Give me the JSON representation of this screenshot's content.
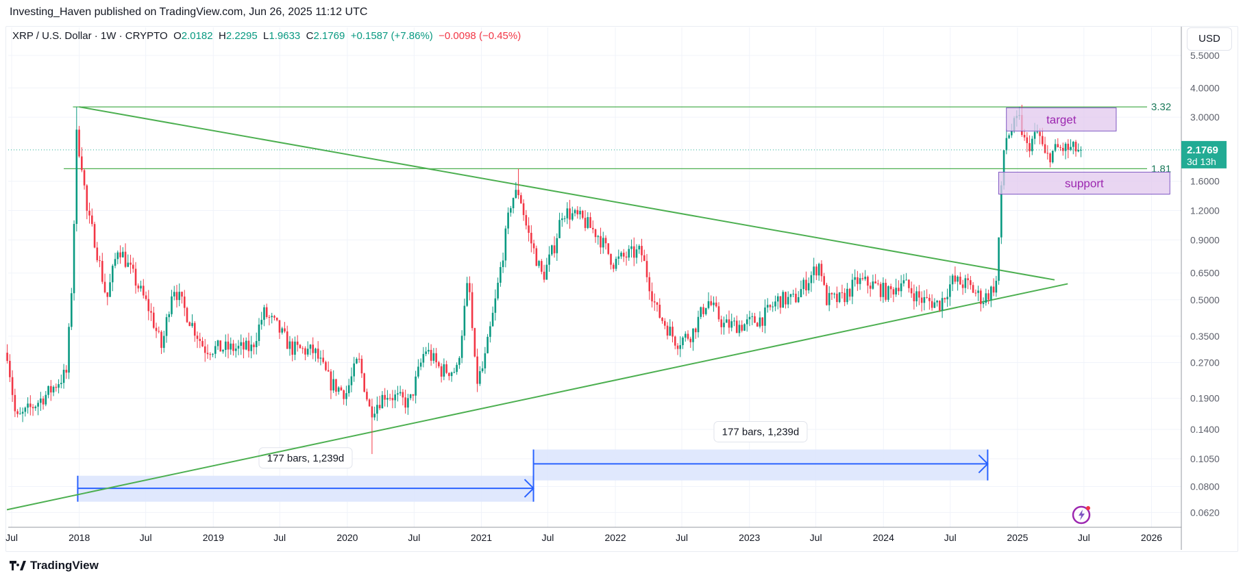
{
  "header": {
    "published": "Investing_Haven published on TradingView.com, Jun 26, 2025 11:12 UTC"
  },
  "legend": {
    "symbol": "XRP / U.S. Dollar · 1W · CRYPTO",
    "o_label": "O",
    "o": "2.0182",
    "h_label": "H",
    "h": "2.2295",
    "l_label": "L",
    "l": "1.9633",
    "c_label": "C",
    "c": "2.1769",
    "change": "+0.1587 (+7.86%)",
    "change2": "−0.0098 (−0.45%)"
  },
  "axis": {
    "currency": "USD",
    "last_price": "2.1769",
    "countdown": "3d 13h"
  },
  "footer": {
    "brand": "TradingView"
  },
  "colors": {
    "up": "#089981",
    "down": "#f23645",
    "trend": "#4caf50",
    "zone_fill": "#e1c8ee",
    "zone_border": "#7e57c2",
    "range_fill": "#dde6fd",
    "range_line": "#2962ff",
    "last_price": "#22ab94"
  },
  "chart_data": {
    "type": "candlestick",
    "timeframe": "1W",
    "scale": "log",
    "ylim": [
      0.0586,
      5.8
    ],
    "xlim": [
      "2017-06-15",
      "2026-06-30"
    ],
    "grid": true,
    "yticks": [
      "5.5000",
      "4.0000",
      "3.0000",
      "1.6000",
      "1.2000",
      "0.9000",
      "0.6500",
      "0.5000",
      "0.3500",
      "0.2700",
      "0.1900",
      "0.1400",
      "0.1050",
      "0.0800",
      "0.0620"
    ],
    "xticks": [
      {
        "label": "Jul",
        "date": "2017-07-01"
      },
      {
        "label": "2018",
        "date": "2018-01-01"
      },
      {
        "label": "Jul",
        "date": "2018-07-01"
      },
      {
        "label": "2019",
        "date": "2019-01-01"
      },
      {
        "label": "Jul",
        "date": "2019-07-01"
      },
      {
        "label": "2020",
        "date": "2020-01-01"
      },
      {
        "label": "Jul",
        "date": "2020-07-01"
      },
      {
        "label": "2021",
        "date": "2021-01-01"
      },
      {
        "label": "Jul",
        "date": "2021-07-01"
      },
      {
        "label": "2022",
        "date": "2022-01-01"
      },
      {
        "label": "Jul",
        "date": "2022-07-01"
      },
      {
        "label": "2023",
        "date": "2023-01-01"
      },
      {
        "label": "Jul",
        "date": "2023-07-01"
      },
      {
        "label": "2024",
        "date": "2024-01-01"
      },
      {
        "label": "Jul",
        "date": "2024-07-01"
      },
      {
        "label": "2025",
        "date": "2025-01-01"
      },
      {
        "label": "Jul",
        "date": "2025-07-01"
      },
      {
        "label": "2026",
        "date": "2026-01-01"
      }
    ],
    "price_path": [
      [
        "2017-06-26",
        0.245
      ],
      [
        "2017-07-13",
        0.153
      ],
      [
        "2017-08-26",
        0.175
      ],
      [
        "2017-10-08",
        0.2
      ],
      [
        "2017-11-28",
        0.245
      ],
      [
        "2017-12-14",
        0.67
      ],
      [
        "2017-12-25",
        2.5
      ],
      [
        "2018-01-08",
        1.9
      ],
      [
        "2018-01-22",
        1.17
      ],
      [
        "2018-02-12",
        0.9
      ],
      [
        "2018-03-17",
        0.5
      ],
      [
        "2018-04-17",
        0.85
      ],
      [
        "2018-05-30",
        0.62
      ],
      [
        "2018-07-12",
        0.45
      ],
      [
        "2018-08-14",
        0.31
      ],
      [
        "2018-09-13",
        0.58
      ],
      [
        "2018-10-16",
        0.45
      ],
      [
        "2018-12-08",
        0.31
      ],
      [
        "2019-02-10",
        0.31
      ],
      [
        "2019-04-16",
        0.31
      ],
      [
        "2019-05-18",
        0.44
      ],
      [
        "2019-06-20",
        0.39
      ],
      [
        "2019-08-01",
        0.31
      ],
      [
        "2019-10-04",
        0.3
      ],
      [
        "2019-11-17",
        0.22
      ],
      [
        "2019-12-29",
        0.2
      ],
      [
        "2020-01-31",
        0.28
      ],
      [
        "2020-03-03",
        0.167
      ],
      [
        "2020-04-15",
        0.2
      ],
      [
        "2020-06-18",
        0.18
      ],
      [
        "2020-07-31",
        0.31
      ],
      [
        "2020-09-12",
        0.25
      ],
      [
        "2020-10-26",
        0.25
      ],
      [
        "2020-11-26",
        0.62
      ],
      [
        "2020-12-17",
        0.22
      ],
      [
        "2021-01-07",
        0.26
      ],
      [
        "2021-02-09",
        0.5
      ],
      [
        "2021-03-24",
        1.35
      ],
      [
        "2021-04-14",
        1.45
      ],
      [
        "2021-05-05",
        1.0
      ],
      [
        "2021-06-17",
        0.62
      ],
      [
        "2021-07-19",
        0.85
      ],
      [
        "2021-08-10",
        1.2
      ],
      [
        "2021-10-01",
        1.1
      ],
      [
        "2021-11-14",
        0.95
      ],
      [
        "2021-12-27",
        0.72
      ],
      [
        "2022-02-08",
        0.78
      ],
      [
        "2022-03-12",
        0.8
      ],
      [
        "2022-04-23",
        0.45
      ],
      [
        "2022-06-17",
        0.33
      ],
      [
        "2022-07-29",
        0.36
      ],
      [
        "2022-09-09",
        0.5
      ],
      [
        "2022-10-23",
        0.39
      ],
      [
        "2022-12-16",
        0.39
      ],
      [
        "2023-02-07",
        0.42
      ],
      [
        "2023-03-20",
        0.5
      ],
      [
        "2023-05-03",
        0.5
      ],
      [
        "2023-07-13",
        0.72
      ],
      [
        "2023-07-27",
        0.5
      ],
      [
        "2023-09-08",
        0.5
      ],
      [
        "2023-10-22",
        0.6
      ],
      [
        "2023-12-03",
        0.58
      ],
      [
        "2024-01-15",
        0.53
      ],
      [
        "2024-02-18",
        0.6
      ],
      [
        "2024-04-12",
        0.5
      ],
      [
        "2024-06-02",
        0.48
      ],
      [
        "2024-07-06",
        0.6
      ],
      [
        "2024-08-17",
        0.58
      ],
      [
        "2024-09-27",
        0.5
      ],
      [
        "2024-10-22",
        0.55
      ],
      [
        "2024-11-05",
        0.6
      ],
      [
        "2024-11-12",
        1.05
      ],
      [
        "2024-11-19",
        1.6
      ],
      [
        "2024-11-26",
        2.4
      ],
      [
        "2025-01-05",
        2.95
      ],
      [
        "2025-01-25",
        2.2
      ],
      [
        "2025-02-27",
        2.6
      ],
      [
        "2025-03-18",
        2.0
      ],
      [
        "2025-04-18",
        2.2
      ],
      [
        "2025-05-11",
        2.2
      ],
      [
        "2025-06-23",
        2.1769
      ]
    ],
    "spike_highs": [
      [
        "2017-12-25",
        3.32
      ],
      [
        "2021-04-14",
        1.81
      ],
      [
        "2025-01-12",
        3.39
      ],
      [
        "2020-03-10",
        0.11
      ]
    ],
    "horizontal_levels": [
      {
        "label": "3.32",
        "price": 3.32,
        "from": "2017-12-15"
      },
      {
        "label": "1.81",
        "price": 1.81,
        "from": "2017-11-20"
      }
    ],
    "trendlines": [
      {
        "from": [
          "2018-01-01",
          3.32
        ],
        "to": [
          "2025-04-12",
          0.608
        ]
      },
      {
        "from": [
          "2017-06-18",
          0.0637
        ],
        "to": [
          "2025-05-18",
          0.585
        ]
      }
    ],
    "zones": [
      {
        "label": "target",
        "from": "2024-12-01",
        "to": "2025-09-27",
        "top": 3.29,
        "bottom": 2.62
      },
      {
        "label": "support",
        "from": "2024-11-10",
        "to": "2026-02-20",
        "top": 1.75,
        "bottom": 1.41
      }
    ],
    "date_ranges": [
      {
        "label": "177 bars, 1,239d",
        "from": "2017-12-28",
        "to": "2021-05-23",
        "top": 0.0889,
        "bottom": 0.0689,
        "line": 0.0786
      },
      {
        "label": "177 bars, 1,239d",
        "from": "2021-05-23",
        "to": "2024-10-11",
        "top": 0.115,
        "bottom": 0.0849,
        "line": 0.0999
      }
    ]
  }
}
